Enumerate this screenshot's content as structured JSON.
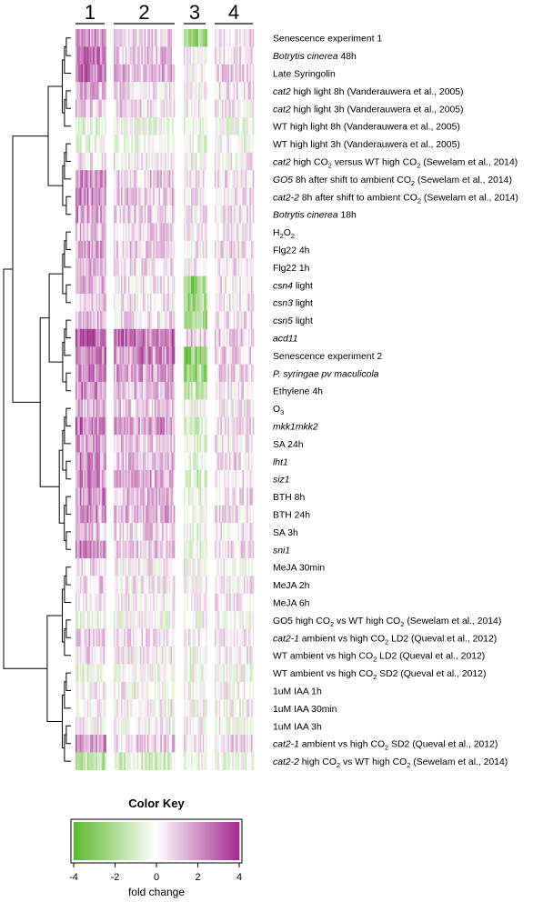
{
  "chart_data": {
    "type": "heatmap",
    "cluster_labels": [
      "1",
      "2",
      "3",
      "4"
    ],
    "rows": [
      [
        {
          "t": "Senescence experiment 1"
        }
      ],
      [
        {
          "t": "Botrytis cinerea",
          "i": true
        },
        {
          "t": " 48h"
        }
      ],
      [
        {
          "t": "Late Syringolin"
        }
      ],
      [
        {
          "t": "cat2",
          "i": true
        },
        {
          "t": " high light 8h (Vanderauwera et al., 2005)"
        }
      ],
      [
        {
          "t": "cat2",
          "i": true
        },
        {
          "t": " high light 3h (Vanderauwera et al., 2005)"
        }
      ],
      [
        {
          "t": "WT high light 8h (Vanderauwera et al., 2005)"
        }
      ],
      [
        {
          "t": "WT high light 3h (Vanderauwera et al., 2005)"
        }
      ],
      [
        {
          "t": "cat2",
          "i": true
        },
        {
          "t": " high CO"
        },
        {
          "t": "2",
          "s": true
        },
        {
          "t": " versus WT high CO"
        },
        {
          "t": "2",
          "s": true
        },
        {
          "t": " (Sewelam et al., 2014)"
        }
      ],
      [
        {
          "t": "GO5",
          "i": true
        },
        {
          "t": " 8h after shift to ambient CO"
        },
        {
          "t": "2",
          "s": true
        },
        {
          "t": " (Sewelam et al., 2014)"
        }
      ],
      [
        {
          "t": "cat2-2",
          "i": true
        },
        {
          "t": " 8h after shift to ambient CO"
        },
        {
          "t": "2",
          "s": true
        },
        {
          "t": " (Sewelam et al., 2014)"
        }
      ],
      [
        {
          "t": "Botrytis cinerea",
          "i": true
        },
        {
          "t": " 18h"
        }
      ],
      [
        {
          "t": "H"
        },
        {
          "t": "2",
          "s": true
        },
        {
          "t": "O"
        },
        {
          "t": "2",
          "s": true
        }
      ],
      [
        {
          "t": "Flg22 4h"
        }
      ],
      [
        {
          "t": "Flg22 1h"
        }
      ],
      [
        {
          "t": "csn4",
          "i": true
        },
        {
          "t": " light"
        }
      ],
      [
        {
          "t": "csn3",
          "i": true
        },
        {
          "t": " light"
        }
      ],
      [
        {
          "t": "csn5",
          "i": true
        },
        {
          "t": " light"
        }
      ],
      [
        {
          "t": "acd11",
          "i": true
        }
      ],
      [
        {
          "t": "Senescence experiment 2"
        }
      ],
      [
        {
          "t": "P. syringae pv maculicola",
          "i": true
        }
      ],
      [
        {
          "t": "Ethylene 4h"
        }
      ],
      [
        {
          "t": "O"
        },
        {
          "t": "3",
          "s": true
        }
      ],
      [
        {
          "t": "mkk1mkk2",
          "i": true
        }
      ],
      [
        {
          "t": "SA 24h"
        }
      ],
      [
        {
          "t": "lht1",
          "i": true
        }
      ],
      [
        {
          "t": "siz1",
          "i": true
        }
      ],
      [
        {
          "t": "BTH 8h"
        }
      ],
      [
        {
          "t": "BTH 24h"
        }
      ],
      [
        {
          "t": "SA 3h"
        }
      ],
      [
        {
          "t": "sni1",
          "i": true
        }
      ],
      [
        {
          "t": "MeJA 30min"
        }
      ],
      [
        {
          "t": "MeJA 2h"
        }
      ],
      [
        {
          "t": "MeJA 6h"
        }
      ],
      [
        {
          "t": "GO5 high CO"
        },
        {
          "t": "2",
          "s": true
        },
        {
          "t": " vs WT high CO"
        },
        {
          "t": "2",
          "s": true
        },
        {
          "t": " (Sewelam et al., 2014)"
        }
      ],
      [
        {
          "t": "cat2-1",
          "i": true
        },
        {
          "t": " ambient vs high CO"
        },
        {
          "t": "2",
          "s": true
        },
        {
          "t": " LD2 (Queval et al., 2012)"
        }
      ],
      [
        {
          "t": "WT ambient vs high CO"
        },
        {
          "t": "2",
          "s": true
        },
        {
          "t": " LD2 (Queval et al., 2012)"
        }
      ],
      [
        {
          "t": "WT ambient vs high CO"
        },
        {
          "t": "2",
          "s": true
        },
        {
          "t": " SD2 (Queval et al., 2012)"
        }
      ],
      [
        {
          "t": "1uM IAA 1h"
        }
      ],
      [
        {
          "t": "1uM IAA 30min"
        }
      ],
      [
        {
          "t": "1uM IAA 3h"
        }
      ],
      [
        {
          "t": "cat2-1",
          "i": true
        },
        {
          "t": " ambient vs high CO"
        },
        {
          "t": "2",
          "s": true
        },
        {
          "t": " SD2 (Queval et al., 2012)"
        }
      ],
      [
        {
          "t": "cat2-2",
          "i": true
        },
        {
          "t": " high CO"
        },
        {
          "t": "2",
          "s": true
        },
        {
          "t": " vs WT high CO"
        },
        {
          "t": "2",
          "s": true
        },
        {
          "t": " (Sewelam et al., 2014)"
        }
      ]
    ],
    "cluster_mean_fold_change": [
      [
        1.8,
        0.9,
        -2.5,
        0.5
      ],
      [
        2.5,
        1.0,
        0.2,
        0.6
      ],
      [
        2.6,
        1.4,
        0.0,
        0.7
      ],
      [
        1.5,
        0.6,
        0.3,
        0.5
      ],
      [
        1.2,
        0.5,
        0.2,
        0.4
      ],
      [
        -0.8,
        -0.3,
        -0.5,
        -0.2
      ],
      [
        -0.6,
        -0.4,
        -0.4,
        -0.2
      ],
      [
        0.3,
        0.2,
        0.0,
        0.1
      ],
      [
        2.0,
        0.9,
        0.4,
        0.5
      ],
      [
        2.2,
        1.0,
        0.3,
        0.6
      ],
      [
        1.8,
        0.8,
        0.3,
        0.4
      ],
      [
        1.0,
        0.6,
        0.1,
        0.3
      ],
      [
        1.5,
        0.8,
        0.3,
        0.4
      ],
      [
        1.2,
        0.7,
        0.2,
        0.4
      ],
      [
        1.2,
        0.5,
        -2.5,
        0.4
      ],
      [
        1.0,
        0.4,
        -2.2,
        0.4
      ],
      [
        1.1,
        0.5,
        -2.0,
        0.4
      ],
      [
        3.0,
        2.6,
        0.8,
        1.0
      ],
      [
        2.6,
        2.2,
        -2.8,
        0.8
      ],
      [
        2.2,
        1.9,
        -2.6,
        0.7
      ],
      [
        2.0,
        1.3,
        -1.2,
        0.5
      ],
      [
        1.4,
        0.9,
        -0.2,
        0.3
      ],
      [
        2.4,
        1.8,
        -1.0,
        0.6
      ],
      [
        1.7,
        1.0,
        -0.6,
        0.4
      ],
      [
        2.1,
        1.2,
        -0.4,
        0.5
      ],
      [
        2.3,
        1.4,
        -1.0,
        0.6
      ],
      [
        2.1,
        1.3,
        -0.3,
        0.6
      ],
      [
        1.8,
        1.2,
        -0.2,
        0.5
      ],
      [
        1.2,
        0.8,
        -0.2,
        0.4
      ],
      [
        1.9,
        1.1,
        -0.3,
        0.5
      ],
      [
        0.6,
        0.2,
        0.0,
        0.2
      ],
      [
        0.8,
        0.3,
        0.1,
        0.3
      ],
      [
        0.7,
        0.3,
        0.1,
        0.3
      ],
      [
        -0.3,
        -0.2,
        0.0,
        -0.1
      ],
      [
        1.0,
        0.5,
        0.2,
        0.4
      ],
      [
        0.5,
        0.2,
        -0.1,
        0.2
      ],
      [
        -0.5,
        -0.3,
        -0.2,
        -0.1
      ],
      [
        0.2,
        0.1,
        0.0,
        0.0
      ],
      [
        0.1,
        0.1,
        0.0,
        0.0
      ],
      [
        0.2,
        0.1,
        0.0,
        0.0
      ],
      [
        2.0,
        0.9,
        0.3,
        0.7
      ],
      [
        -1.6,
        -0.8,
        -0.3,
        -0.4
      ]
    ],
    "color_key": {
      "title": "Color Key",
      "xlabel": "fold change",
      "ticks": [
        "-4",
        "-2",
        "0",
        "2",
        "4"
      ],
      "range": [
        -4,
        4
      ],
      "low_color": "#5cb82c",
      "mid_color": "#ffffff",
      "high_color": "#a3298c"
    }
  }
}
